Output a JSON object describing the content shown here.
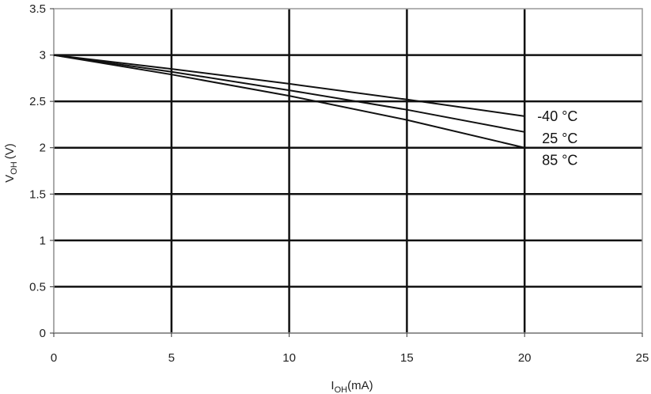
{
  "chart_data": {
    "type": "line",
    "xlabel_main": "I",
    "xlabel_sub": "OH",
    "xlabel_unit": "(mA)",
    "ylabel_main": "V",
    "ylabel_sub": "OH",
    "ylabel_unit": "(V)",
    "xlim": [
      0,
      25
    ],
    "ylim": [
      0,
      3.5
    ],
    "x_ticks": [
      0,
      5,
      10,
      15,
      20,
      25
    ],
    "x_tick_labels": [
      "0",
      "5",
      "10",
      "15",
      "20",
      "25"
    ],
    "y_ticks": [
      0,
      0.5,
      1,
      1.5,
      2,
      2.5,
      3,
      3.5
    ],
    "y_tick_labels": [
      "0",
      "0.5",
      "1",
      "1.5",
      "2",
      "2.5",
      "3",
      "3.5"
    ],
    "grid": true,
    "line_color": "#111111",
    "grid_color": "#111111",
    "frame_color": "#999999",
    "series": [
      {
        "name": "-40 °C",
        "x": [
          0,
          5,
          10,
          15,
          20
        ],
        "y": [
          3.0,
          2.85,
          2.69,
          2.52,
          2.34
        ]
      },
      {
        "name": "25 °C",
        "x": [
          0,
          5,
          10,
          15,
          20
        ],
        "y": [
          3.0,
          2.82,
          2.62,
          2.41,
          2.17
        ]
      },
      {
        "name": "85 °C",
        "x": [
          0,
          5,
          10,
          15,
          20
        ],
        "y": [
          3.0,
          2.79,
          2.56,
          2.3,
          2.0
        ]
      }
    ]
  }
}
